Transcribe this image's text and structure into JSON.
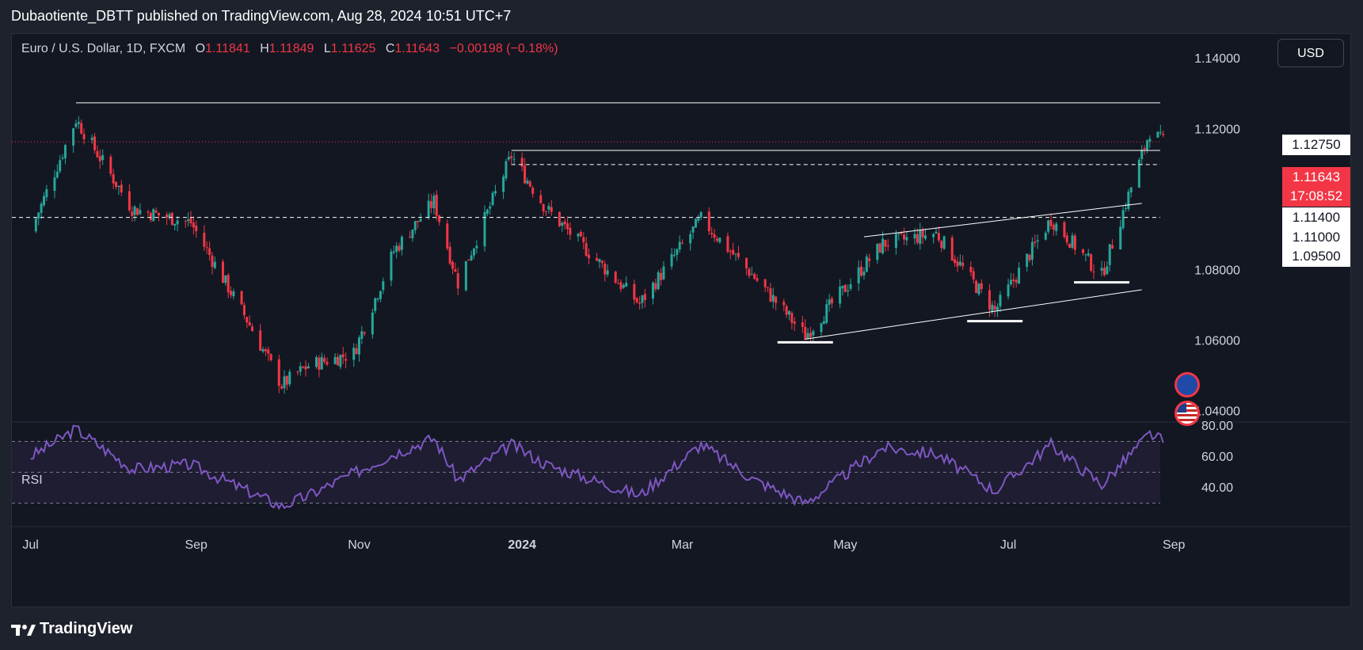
{
  "header": {
    "publisher_line": "Dubaotiente_DBTT published on TradingView.com, Aug 28, 2024 10:51 UTC+7"
  },
  "legend": {
    "symbol": "Euro / U.S. Dollar, 1D, FXCM",
    "open_label": "O",
    "open_value": "1.11841",
    "high_label": "H",
    "high_value": "1.11849",
    "low_label": "L",
    "low_value": "1.11625",
    "close_label": "C",
    "close_value": "1.11643",
    "change": "−0.00198 (−0.18%)"
  },
  "currency_button": "USD",
  "price_axis": {
    "ticks": [
      "1.14000",
      "1.12000",
      "1.08000",
      "1.06000",
      "1.04000"
    ],
    "current_price_tag": "1.11643",
    "countdown_tag": "17:08:52",
    "level_tags": [
      "1.12750",
      "1.11400",
      "1.11000",
      "1.09500"
    ]
  },
  "rsi": {
    "label": "RSI",
    "ticks": [
      "80.00",
      "60.00",
      "40.00"
    ]
  },
  "time_axis": {
    "labels": [
      "Jul",
      "Sep",
      "Nov",
      "2024",
      "Mar",
      "May",
      "Jul",
      "Sep"
    ]
  },
  "footer": {
    "brand": "TradingView"
  },
  "colors": {
    "up": "#26a69a",
    "down": "#f23645",
    "rsi_line": "#7e57c2",
    "background": "#131722"
  },
  "icons": [
    "tradingview-logo-icon",
    "eu-flag-icon",
    "us-flag-icon"
  ],
  "chart_data": {
    "type": "candlestick",
    "symbol": "Euro / U.S. Dollar, 1D, FXCM",
    "ylim": [
      1.04,
      1.145
    ],
    "horizontal_levels": [
      1.1275,
      1.114,
      1.11,
      1.095
    ],
    "trend_lines": [
      {
        "from": [
          "2024-04-16",
          1.0605
        ],
        "to": [
          "2024-08-20",
          1.0745
        ]
      },
      {
        "from": [
          "2024-05-08",
          1.0895
        ],
        "to": [
          "2024-08-20",
          1.099
        ]
      }
    ],
    "support_marks": [
      {
        "date": "2024-04-16",
        "price": 1.0605
      },
      {
        "date": "2024-06-26",
        "price": 1.0665
      },
      {
        "date": "2024-08-05",
        "price": 1.0775
      }
    ],
    "close_path": [
      {
        "date": "2023-07-01",
        "close": 1.091
      },
      {
        "date": "2023-07-18",
        "close": 1.1228
      },
      {
        "date": "2023-08-08",
        "close": 1.0975
      },
      {
        "date": "2023-08-30",
        "close": 1.0935
      },
      {
        "date": "2023-09-20",
        "close": 1.066
      },
      {
        "date": "2023-10-03",
        "close": 1.0475
      },
      {
        "date": "2023-10-13",
        "close": 1.053
      },
      {
        "date": "2023-10-30",
        "close": 1.0565
      },
      {
        "date": "2023-11-14",
        "close": 1.0855
      },
      {
        "date": "2023-11-29",
        "close": 1.0995
      },
      {
        "date": "2023-12-08",
        "close": 1.0765
      },
      {
        "date": "2023-12-28",
        "close": 1.1125
      },
      {
        "date": "2024-01-10",
        "close": 1.0975
      },
      {
        "date": "2024-02-14",
        "close": 1.0705
      },
      {
        "date": "2024-03-08",
        "close": 1.0945
      },
      {
        "date": "2024-03-28",
        "close": 1.078
      },
      {
        "date": "2024-04-16",
        "close": 1.0615
      },
      {
        "date": "2024-05-15",
        "close": 1.0875
      },
      {
        "date": "2024-06-04",
        "close": 1.0905
      },
      {
        "date": "2024-06-26",
        "close": 1.0685
      },
      {
        "date": "2024-07-17",
        "close": 1.0945
      },
      {
        "date": "2024-08-05",
        "close": 1.0785
      },
      {
        "date": "2024-08-23",
        "close": 1.1195
      },
      {
        "date": "2024-08-28",
        "close": 1.11643
      }
    ],
    "rsi": {
      "ylim": [
        20,
        80
      ],
      "levels": [
        70,
        50,
        30
      ],
      "values": [
        {
          "date": "2023-07-01",
          "value": 60
        },
        {
          "date": "2023-07-18",
          "value": 78
        },
        {
          "date": "2023-08-08",
          "value": 52
        },
        {
          "date": "2023-08-30",
          "value": 55
        },
        {
          "date": "2023-09-20",
          "value": 38
        },
        {
          "date": "2023-10-03",
          "value": 28
        },
        {
          "date": "2023-10-13",
          "value": 35
        },
        {
          "date": "2023-11-14",
          "value": 62
        },
        {
          "date": "2023-11-29",
          "value": 72
        },
        {
          "date": "2023-12-08",
          "value": 45
        },
        {
          "date": "2023-12-28",
          "value": 68
        },
        {
          "date": "2024-01-10",
          "value": 55
        },
        {
          "date": "2024-02-14",
          "value": 35
        },
        {
          "date": "2024-03-08",
          "value": 68
        },
        {
          "date": "2024-03-28",
          "value": 45
        },
        {
          "date": "2024-04-16",
          "value": 30
        },
        {
          "date": "2024-05-15",
          "value": 66
        },
        {
          "date": "2024-06-04",
          "value": 62
        },
        {
          "date": "2024-06-26",
          "value": 38
        },
        {
          "date": "2024-07-17",
          "value": 68
        },
        {
          "date": "2024-08-05",
          "value": 42
        },
        {
          "date": "2024-08-23",
          "value": 75
        },
        {
          "date": "2024-08-28",
          "value": 70
        }
      ]
    }
  }
}
